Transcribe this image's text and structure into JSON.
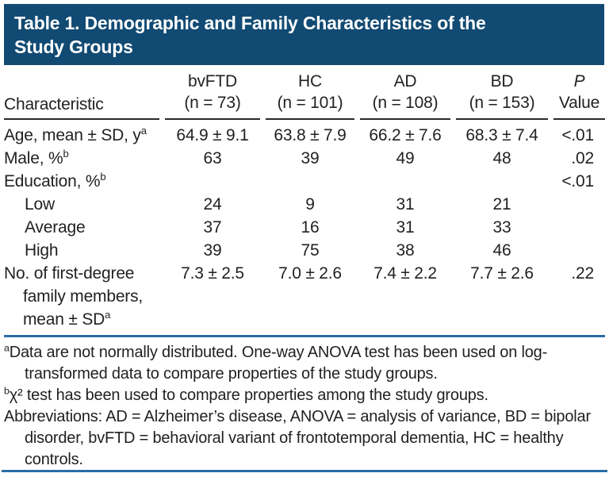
{
  "banner": {
    "title_lines": [
      "Table 1. Demographic and Family Characteristics of the",
      "Study Groups"
    ]
  },
  "table": {
    "characteristic_header": "Characteristic",
    "columns": [
      {
        "name": "bvFTD",
        "n": "(n = 73)",
        "italic": false
      },
      {
        "name": "HC",
        "n": "(n = 101)",
        "italic": false
      },
      {
        "name": "AD",
        "n": "(n = 108)",
        "italic": false
      },
      {
        "name": "BD",
        "n": "(n = 153)",
        "italic": false
      },
      {
        "name": "P",
        "n": "Value",
        "italic": true
      }
    ],
    "rows": [
      {
        "label": "Age, mean ± SD, y",
        "sup": "a",
        "indent": false,
        "values": [
          "64.9 ± 9.1",
          "63.8 ± 7.9",
          "66.2 ± 7.6",
          "68.3 ± 7.4"
        ],
        "p": "<.01"
      },
      {
        "label": "Male, %",
        "sup": "b",
        "indent": false,
        "values": [
          "63",
          "39",
          "49",
          "48"
        ],
        "p": ".02"
      },
      {
        "label": "Education, %",
        "sup": "b",
        "indent": false,
        "values": [
          "",
          "",
          "",
          ""
        ],
        "p": "<.01"
      },
      {
        "label": "Low",
        "sup": "",
        "indent": true,
        "values": [
          "24",
          "9",
          "31",
          "21"
        ],
        "p": ""
      },
      {
        "label": "Average",
        "sup": "",
        "indent": true,
        "values": [
          "37",
          "16",
          "31",
          "33"
        ],
        "p": ""
      },
      {
        "label": "High",
        "sup": "",
        "indent": true,
        "values": [
          "39",
          "75",
          "38",
          "46"
        ],
        "p": ""
      },
      {
        "label": "No. of first-degree family members, mean ± SD",
        "sup": "a",
        "indent": false,
        "values": [
          "7.3 ± 2.5",
          "7.0 ± 2.6",
          "7.4 ± 2.2",
          "7.7 ± 2.6"
        ],
        "p": ".22"
      }
    ]
  },
  "footnotes": [
    {
      "marker": "a",
      "text": "Data are not normally distributed. One-way ANOVA test has been used on log-transformed data to compare properties of the study groups."
    },
    {
      "marker": "b",
      "text": "χ² test has been used to compare properties among the study groups."
    },
    {
      "marker": "",
      "text": "Abbreviations: AD = Alzheimer’s disease, ANOVA = analysis of variance, BD = bipolar disorder, bvFTD = behavioral variant of frontotemporal dementia, HC = healthy controls."
    }
  ],
  "colors": {
    "banner_bg": "#114a73",
    "rule_blue": "#2a6da6",
    "rule_dark": "#2b292a",
    "text": "#231f20"
  }
}
